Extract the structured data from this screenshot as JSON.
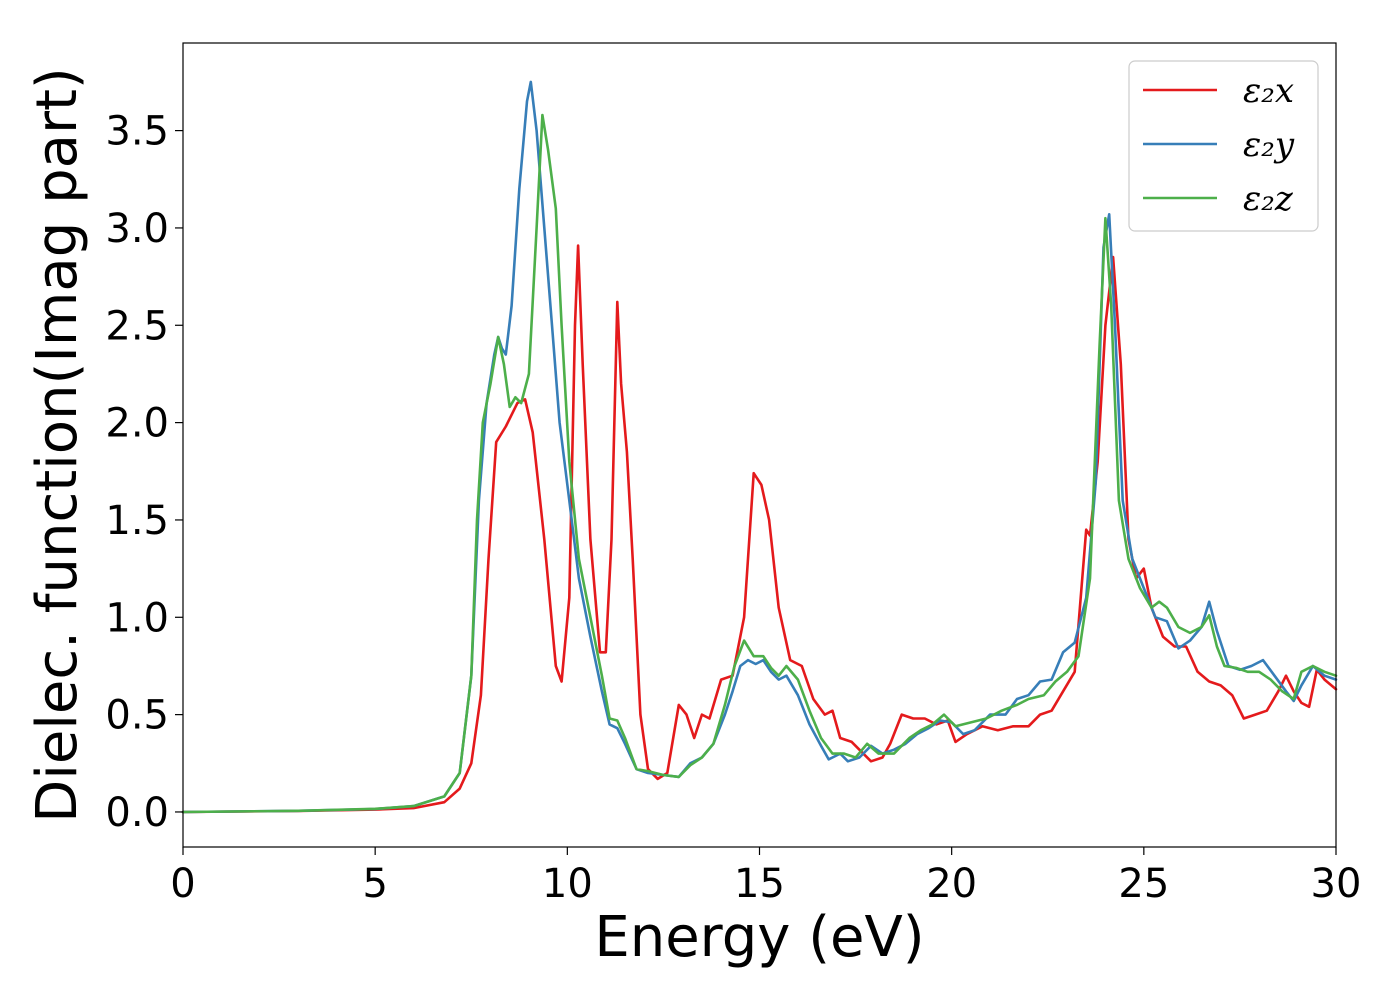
{
  "chart_data": {
    "type": "line",
    "xlabel": "Energy (eV)",
    "ylabel": "Dielec. function(Imag part)",
    "xlim": [
      0,
      30
    ],
    "ylim": [
      -0.18,
      3.95
    ],
    "xticks": [
      0,
      5,
      10,
      15,
      20,
      25,
      30
    ],
    "xtick_labels": [
      "0",
      "5",
      "10",
      "15",
      "20",
      "25",
      "30"
    ],
    "yticks": [
      0.0,
      0.5,
      1.0,
      1.5,
      2.0,
      2.5,
      3.0,
      3.5
    ],
    "ytick_labels": [
      "0.0",
      "0.5",
      "1.0",
      "1.5",
      "2.0",
      "2.5",
      "3.0",
      "3.5"
    ],
    "grid": false,
    "legend": {
      "position": "top-right",
      "entries": [
        "ε₂x",
        "ε₂y",
        "ε₂z"
      ]
    },
    "series": [
      {
        "name": "ε₂x",
        "color": "#e41a1c",
        "points": [
          [
            0,
            0
          ],
          [
            3,
            0.005
          ],
          [
            5,
            0.012
          ],
          [
            6,
            0.02
          ],
          [
            6.8,
            0.05
          ],
          [
            7.2,
            0.12
          ],
          [
            7.5,
            0.25
          ],
          [
            7.75,
            0.6
          ],
          [
            7.95,
            1.3
          ],
          [
            8.15,
            1.9
          ],
          [
            8.4,
            1.98
          ],
          [
            8.7,
            2.1
          ],
          [
            8.9,
            2.12
          ],
          [
            9.1,
            1.95
          ],
          [
            9.4,
            1.4
          ],
          [
            9.7,
            0.75
          ],
          [
            9.85,
            0.67
          ],
          [
            10.05,
            1.1
          ],
          [
            10.2,
            2.5
          ],
          [
            10.28,
            2.91
          ],
          [
            10.4,
            2.3
          ],
          [
            10.6,
            1.4
          ],
          [
            10.85,
            0.82
          ],
          [
            11.0,
            0.82
          ],
          [
            11.15,
            1.4
          ],
          [
            11.3,
            2.62
          ],
          [
            11.4,
            2.2
          ],
          [
            11.55,
            1.85
          ],
          [
            11.7,
            1.3
          ],
          [
            11.9,
            0.5
          ],
          [
            12.1,
            0.22
          ],
          [
            12.35,
            0.17
          ],
          [
            12.6,
            0.2
          ],
          [
            12.9,
            0.55
          ],
          [
            13.1,
            0.5
          ],
          [
            13.3,
            0.38
          ],
          [
            13.5,
            0.5
          ],
          [
            13.7,
            0.48
          ],
          [
            14.0,
            0.68
          ],
          [
            14.3,
            0.7
          ],
          [
            14.6,
            1.0
          ],
          [
            14.85,
            1.74
          ],
          [
            15.05,
            1.68
          ],
          [
            15.25,
            1.5
          ],
          [
            15.5,
            1.05
          ],
          [
            15.8,
            0.78
          ],
          [
            16.1,
            0.75
          ],
          [
            16.4,
            0.58
          ],
          [
            16.7,
            0.5
          ],
          [
            16.9,
            0.52
          ],
          [
            17.1,
            0.38
          ],
          [
            17.4,
            0.36
          ],
          [
            17.6,
            0.32
          ],
          [
            17.9,
            0.26
          ],
          [
            18.2,
            0.28
          ],
          [
            18.4,
            0.35
          ],
          [
            18.7,
            0.5
          ],
          [
            19.0,
            0.48
          ],
          [
            19.3,
            0.48
          ],
          [
            19.6,
            0.45
          ],
          [
            19.9,
            0.47
          ],
          [
            20.1,
            0.36
          ],
          [
            20.4,
            0.4
          ],
          [
            20.8,
            0.44
          ],
          [
            21.2,
            0.42
          ],
          [
            21.6,
            0.44
          ],
          [
            22.0,
            0.44
          ],
          [
            22.3,
            0.5
          ],
          [
            22.6,
            0.52
          ],
          [
            22.9,
            0.62
          ],
          [
            23.2,
            0.72
          ],
          [
            23.5,
            1.45
          ],
          [
            23.6,
            1.42
          ],
          [
            23.8,
            1.8
          ],
          [
            24.0,
            2.5
          ],
          [
            24.2,
            2.85
          ],
          [
            24.4,
            2.3
          ],
          [
            24.6,
            1.4
          ],
          [
            24.8,
            1.2
          ],
          [
            25.0,
            1.25
          ],
          [
            25.2,
            1.05
          ],
          [
            25.5,
            0.9
          ],
          [
            25.8,
            0.85
          ],
          [
            26.1,
            0.85
          ],
          [
            26.4,
            0.72
          ],
          [
            26.7,
            0.67
          ],
          [
            27.0,
            0.65
          ],
          [
            27.3,
            0.6
          ],
          [
            27.6,
            0.48
          ],
          [
            27.9,
            0.5
          ],
          [
            28.2,
            0.52
          ],
          [
            28.5,
            0.62
          ],
          [
            28.7,
            0.7
          ],
          [
            28.9,
            0.62
          ],
          [
            29.1,
            0.56
          ],
          [
            29.3,
            0.54
          ],
          [
            29.5,
            0.73
          ],
          [
            29.7,
            0.68
          ],
          [
            30,
            0.63
          ]
        ]
      },
      {
        "name": "ε₂y",
        "color": "#377eb8",
        "points": [
          [
            0,
            0
          ],
          [
            3,
            0.006
          ],
          [
            5,
            0.015
          ],
          [
            6,
            0.03
          ],
          [
            6.8,
            0.08
          ],
          [
            7.2,
            0.2
          ],
          [
            7.5,
            0.7
          ],
          [
            7.7,
            1.6
          ],
          [
            7.9,
            2.1
          ],
          [
            8.1,
            2.35
          ],
          [
            8.2,
            2.44
          ],
          [
            8.3,
            2.38
          ],
          [
            8.4,
            2.35
          ],
          [
            8.55,
            2.6
          ],
          [
            8.75,
            3.2
          ],
          [
            8.95,
            3.65
          ],
          [
            9.05,
            3.75
          ],
          [
            9.2,
            3.5
          ],
          [
            9.4,
            3.0
          ],
          [
            9.6,
            2.5
          ],
          [
            9.8,
            2.0
          ],
          [
            10.05,
            1.6
          ],
          [
            10.3,
            1.2
          ],
          [
            10.6,
            0.9
          ],
          [
            10.9,
            0.62
          ],
          [
            11.1,
            0.45
          ],
          [
            11.3,
            0.43
          ],
          [
            11.5,
            0.35
          ],
          [
            11.8,
            0.22
          ],
          [
            12.1,
            0.2
          ],
          [
            12.5,
            0.19
          ],
          [
            12.9,
            0.18
          ],
          [
            13.2,
            0.25
          ],
          [
            13.5,
            0.28
          ],
          [
            13.8,
            0.35
          ],
          [
            14.1,
            0.5
          ],
          [
            14.3,
            0.62
          ],
          [
            14.5,
            0.75
          ],
          [
            14.7,
            0.78
          ],
          [
            14.9,
            0.76
          ],
          [
            15.1,
            0.78
          ],
          [
            15.3,
            0.72
          ],
          [
            15.5,
            0.68
          ],
          [
            15.7,
            0.7
          ],
          [
            16.0,
            0.6
          ],
          [
            16.3,
            0.45
          ],
          [
            16.6,
            0.34
          ],
          [
            16.8,
            0.27
          ],
          [
            17.1,
            0.3
          ],
          [
            17.3,
            0.26
          ],
          [
            17.6,
            0.28
          ],
          [
            17.9,
            0.34
          ],
          [
            18.2,
            0.3
          ],
          [
            18.5,
            0.32
          ],
          [
            18.8,
            0.35
          ],
          [
            19.1,
            0.4
          ],
          [
            19.4,
            0.43
          ],
          [
            19.7,
            0.47
          ],
          [
            20.0,
            0.46
          ],
          [
            20.3,
            0.4
          ],
          [
            20.6,
            0.42
          ],
          [
            21.0,
            0.5
          ],
          [
            21.4,
            0.5
          ],
          [
            21.7,
            0.58
          ],
          [
            22.0,
            0.6
          ],
          [
            22.3,
            0.67
          ],
          [
            22.6,
            0.68
          ],
          [
            22.9,
            0.82
          ],
          [
            23.2,
            0.87
          ],
          [
            23.5,
            1.1
          ],
          [
            23.75,
            1.7
          ],
          [
            23.95,
            2.9
          ],
          [
            24.1,
            3.07
          ],
          [
            24.25,
            2.5
          ],
          [
            24.45,
            1.6
          ],
          [
            24.7,
            1.3
          ],
          [
            25.0,
            1.15
          ],
          [
            25.3,
            1.0
          ],
          [
            25.6,
            0.98
          ],
          [
            25.9,
            0.84
          ],
          [
            26.2,
            0.88
          ],
          [
            26.5,
            0.95
          ],
          [
            26.7,
            1.08
          ],
          [
            26.9,
            0.93
          ],
          [
            27.2,
            0.75
          ],
          [
            27.5,
            0.73
          ],
          [
            27.8,
            0.75
          ],
          [
            28.1,
            0.78
          ],
          [
            28.4,
            0.7
          ],
          [
            28.7,
            0.62
          ],
          [
            28.9,
            0.57
          ],
          [
            29.1,
            0.65
          ],
          [
            29.4,
            0.75
          ],
          [
            29.7,
            0.7
          ],
          [
            30,
            0.68
          ]
        ]
      },
      {
        "name": "ε₂z",
        "color": "#4daf4a",
        "points": [
          [
            0,
            0
          ],
          [
            3,
            0.006
          ],
          [
            5,
            0.016
          ],
          [
            6,
            0.03
          ],
          [
            6.8,
            0.08
          ],
          [
            7.2,
            0.2
          ],
          [
            7.5,
            0.7
          ],
          [
            7.65,
            1.5
          ],
          [
            7.8,
            2.0
          ],
          [
            8.0,
            2.2
          ],
          [
            8.2,
            2.44
          ],
          [
            8.35,
            2.3
          ],
          [
            8.5,
            2.08
          ],
          [
            8.65,
            2.13
          ],
          [
            8.8,
            2.1
          ],
          [
            9.0,
            2.25
          ],
          [
            9.2,
            3.0
          ],
          [
            9.35,
            3.58
          ],
          [
            9.5,
            3.4
          ],
          [
            9.7,
            3.1
          ],
          [
            9.85,
            2.5
          ],
          [
            10.05,
            1.8
          ],
          [
            10.3,
            1.3
          ],
          [
            10.6,
            1.0
          ],
          [
            10.9,
            0.7
          ],
          [
            11.1,
            0.48
          ],
          [
            11.3,
            0.47
          ],
          [
            11.5,
            0.38
          ],
          [
            11.8,
            0.22
          ],
          [
            12.1,
            0.21
          ],
          [
            12.5,
            0.19
          ],
          [
            12.9,
            0.18
          ],
          [
            13.2,
            0.24
          ],
          [
            13.5,
            0.28
          ],
          [
            13.8,
            0.35
          ],
          [
            14.1,
            0.55
          ],
          [
            14.35,
            0.75
          ],
          [
            14.6,
            0.88
          ],
          [
            14.85,
            0.8
          ],
          [
            15.1,
            0.8
          ],
          [
            15.3,
            0.74
          ],
          [
            15.5,
            0.7
          ],
          [
            15.7,
            0.75
          ],
          [
            16.0,
            0.68
          ],
          [
            16.3,
            0.52
          ],
          [
            16.6,
            0.38
          ],
          [
            16.9,
            0.3
          ],
          [
            17.2,
            0.3
          ],
          [
            17.5,
            0.28
          ],
          [
            17.8,
            0.35
          ],
          [
            18.1,
            0.3
          ],
          [
            18.5,
            0.3
          ],
          [
            18.9,
            0.38
          ],
          [
            19.2,
            0.42
          ],
          [
            19.5,
            0.45
          ],
          [
            19.8,
            0.5
          ],
          [
            20.1,
            0.44
          ],
          [
            20.5,
            0.46
          ],
          [
            20.9,
            0.48
          ],
          [
            21.3,
            0.52
          ],
          [
            21.7,
            0.55
          ],
          [
            22.0,
            0.58
          ],
          [
            22.4,
            0.6
          ],
          [
            22.7,
            0.67
          ],
          [
            23.0,
            0.72
          ],
          [
            23.3,
            0.8
          ],
          [
            23.6,
            1.2
          ],
          [
            23.85,
            2.4
          ],
          [
            24.0,
            3.05
          ],
          [
            24.15,
            2.6
          ],
          [
            24.35,
            1.6
          ],
          [
            24.6,
            1.3
          ],
          [
            24.9,
            1.15
          ],
          [
            25.2,
            1.05
          ],
          [
            25.4,
            1.08
          ],
          [
            25.6,
            1.05
          ],
          [
            25.9,
            0.95
          ],
          [
            26.2,
            0.92
          ],
          [
            26.5,
            0.95
          ],
          [
            26.7,
            1.01
          ],
          [
            26.9,
            0.85
          ],
          [
            27.1,
            0.75
          ],
          [
            27.4,
            0.74
          ],
          [
            27.7,
            0.72
          ],
          [
            28.0,
            0.72
          ],
          [
            28.3,
            0.68
          ],
          [
            28.6,
            0.62
          ],
          [
            28.9,
            0.58
          ],
          [
            29.1,
            0.72
          ],
          [
            29.4,
            0.75
          ],
          [
            29.7,
            0.72
          ],
          [
            30,
            0.7
          ]
        ]
      }
    ]
  }
}
